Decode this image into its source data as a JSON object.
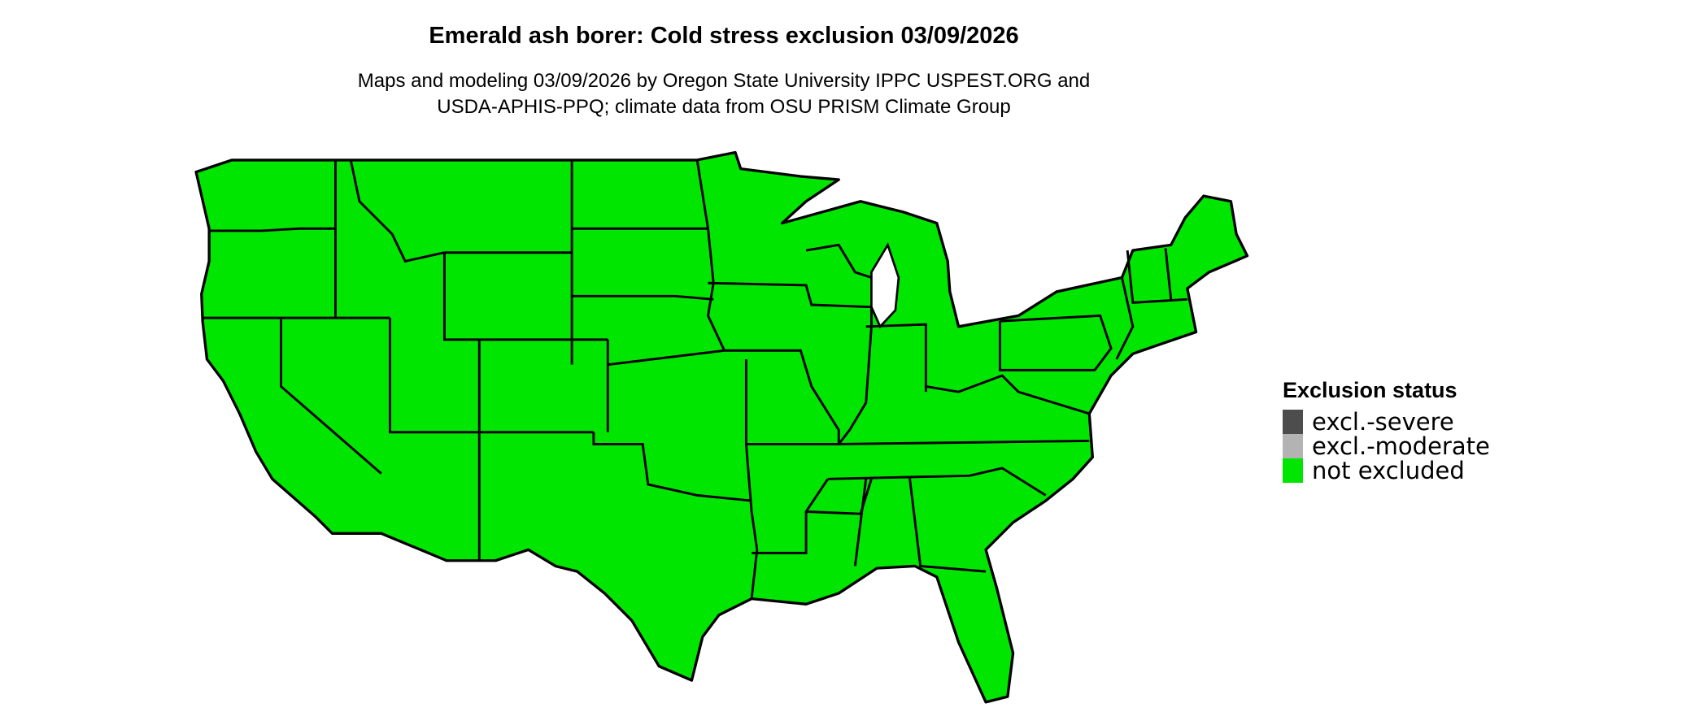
{
  "title": "Emerald ash borer: Cold stress exclusion 03/09/2026",
  "subtitle_line1": "Maps and modeling 03/09/2026 by Oregon State University IPPC USPEST.ORG and",
  "subtitle_line2": "USDA-APHIS-PPQ; climate data from OSU PRISM Climate Group",
  "map": {
    "region": "Contiguous United States",
    "fill_status": "not excluded",
    "fill_color": "#00e600",
    "border_color": "#000000"
  },
  "legend": {
    "title": "Exclusion status",
    "items": [
      {
        "label": "excl.-severe",
        "color": "#4d4d4d"
      },
      {
        "label": "excl.-moderate",
        "color": "#b3b3b3"
      },
      {
        "label": "not excluded",
        "color": "#00e600"
      }
    ]
  }
}
